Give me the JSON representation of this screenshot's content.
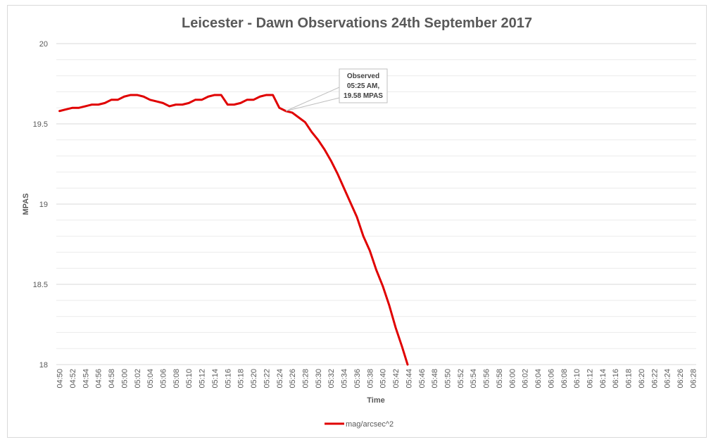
{
  "chart_data": {
    "type": "line",
    "title": "Leicester - Dawn Observations 24th September 2017",
    "xlabel": "Time",
    "ylabel": "MPAS",
    "ylim": [
      18,
      20
    ],
    "yticks": [
      "20",
      "19.5",
      "19",
      "18.5",
      "18"
    ],
    "grid": true,
    "legend_position": "bottom",
    "x_categories": [
      "04:50",
      "04:51",
      "04:52",
      "04:53",
      "04:54",
      "04:55",
      "04:56",
      "04:57",
      "04:58",
      "04:59",
      "05:00",
      "05:01",
      "05:02",
      "05:03",
      "05:04",
      "05:05",
      "05:06",
      "05:07",
      "05:08",
      "05:09",
      "05:10",
      "05:11",
      "05:12",
      "05:13",
      "05:14",
      "05:15",
      "05:16",
      "05:17",
      "05:18",
      "05:19",
      "05:20",
      "05:21",
      "05:22",
      "05:23",
      "05:24",
      "05:25",
      "05:26",
      "05:27",
      "05:28",
      "05:29",
      "05:30",
      "05:31",
      "05:32",
      "05:33",
      "05:34",
      "05:35",
      "05:36",
      "05:37",
      "05:38",
      "05:39",
      "05:40",
      "05:41",
      "05:42",
      "05:43",
      "05:44",
      "05:45",
      "05:46",
      "05:47",
      "05:48",
      "05:49",
      "05:50",
      "05:51",
      "05:52",
      "05:53",
      "05:54",
      "05:55",
      "05:56",
      "05:57",
      "05:58",
      "05:59",
      "06:00",
      "06:01",
      "06:02",
      "06:03",
      "06:04",
      "06:05",
      "06:06",
      "06:07",
      "06:08",
      "06:09",
      "06:10",
      "06:11",
      "06:12",
      "06:13",
      "06:14",
      "06:15",
      "06:16",
      "06:17",
      "06:18",
      "06:19",
      "06:20",
      "06:21",
      "06:22",
      "06:23",
      "06:24",
      "06:25",
      "06:26",
      "06:27",
      "06:28"
    ],
    "x_tick_labels": [
      "04:50",
      "04:52",
      "04:54",
      "04:56",
      "04:58",
      "05:00",
      "05:02",
      "05:04",
      "05:06",
      "05:08",
      "05:10",
      "05:12",
      "05:14",
      "05:16",
      "05:18",
      "05:20",
      "05:22",
      "05:24",
      "05:26",
      "05:28",
      "05:30",
      "05:32",
      "05:34",
      "05:36",
      "05:38",
      "05:40",
      "05:42",
      "05:44",
      "05:46",
      "05:48",
      "05:50",
      "05:52",
      "05:54",
      "05:56",
      "05:58",
      "06:00",
      "06:02",
      "06:04",
      "06:06",
      "06:08",
      "06:10",
      "06:12",
      "06:14",
      "06:16",
      "06:18",
      "06:20",
      "06:22",
      "06:24",
      "06:26",
      "06:28"
    ],
    "series": [
      {
        "name": "mag/arcsec^2",
        "color": "#e00000",
        "x": [
          "04:50",
          "04:51",
          "04:52",
          "04:53",
          "04:54",
          "04:55",
          "04:56",
          "04:57",
          "04:58",
          "04:59",
          "05:00",
          "05:01",
          "05:02",
          "05:03",
          "05:04",
          "05:05",
          "05:06",
          "05:07",
          "05:08",
          "05:09",
          "05:10",
          "05:11",
          "05:12",
          "05:13",
          "05:14",
          "05:15",
          "05:16",
          "05:17",
          "05:18",
          "05:19",
          "05:20",
          "05:21",
          "05:22",
          "05:23",
          "05:24",
          "05:25",
          "05:26",
          "05:27",
          "05:28",
          "05:29",
          "05:30",
          "05:31",
          "05:32",
          "05:33",
          "05:34",
          "05:35",
          "05:36",
          "05:37",
          "05:38",
          "05:39",
          "05:40",
          "05:41",
          "05:42",
          "05:43",
          "05:44"
        ],
        "values": [
          19.58,
          19.59,
          19.6,
          19.6,
          19.61,
          19.62,
          19.62,
          19.63,
          19.65,
          19.65,
          19.67,
          19.68,
          19.68,
          19.67,
          19.65,
          19.64,
          19.63,
          19.61,
          19.62,
          19.62,
          19.63,
          19.65,
          19.65,
          19.67,
          19.68,
          19.68,
          19.62,
          19.62,
          19.63,
          19.65,
          19.65,
          19.67,
          19.68,
          19.68,
          19.6,
          19.58,
          19.57,
          19.54,
          19.51,
          19.45,
          19.4,
          19.34,
          19.27,
          19.19,
          19.1,
          19.01,
          18.92,
          18.8,
          18.71,
          18.59,
          18.49,
          18.37,
          18.23,
          18.11,
          17.98
        ]
      }
    ],
    "annotation": {
      "lines": [
        "Observed",
        "05:25 AM,",
        "19.58 MPAS"
      ],
      "x": "05:25",
      "y": 19.58
    }
  }
}
